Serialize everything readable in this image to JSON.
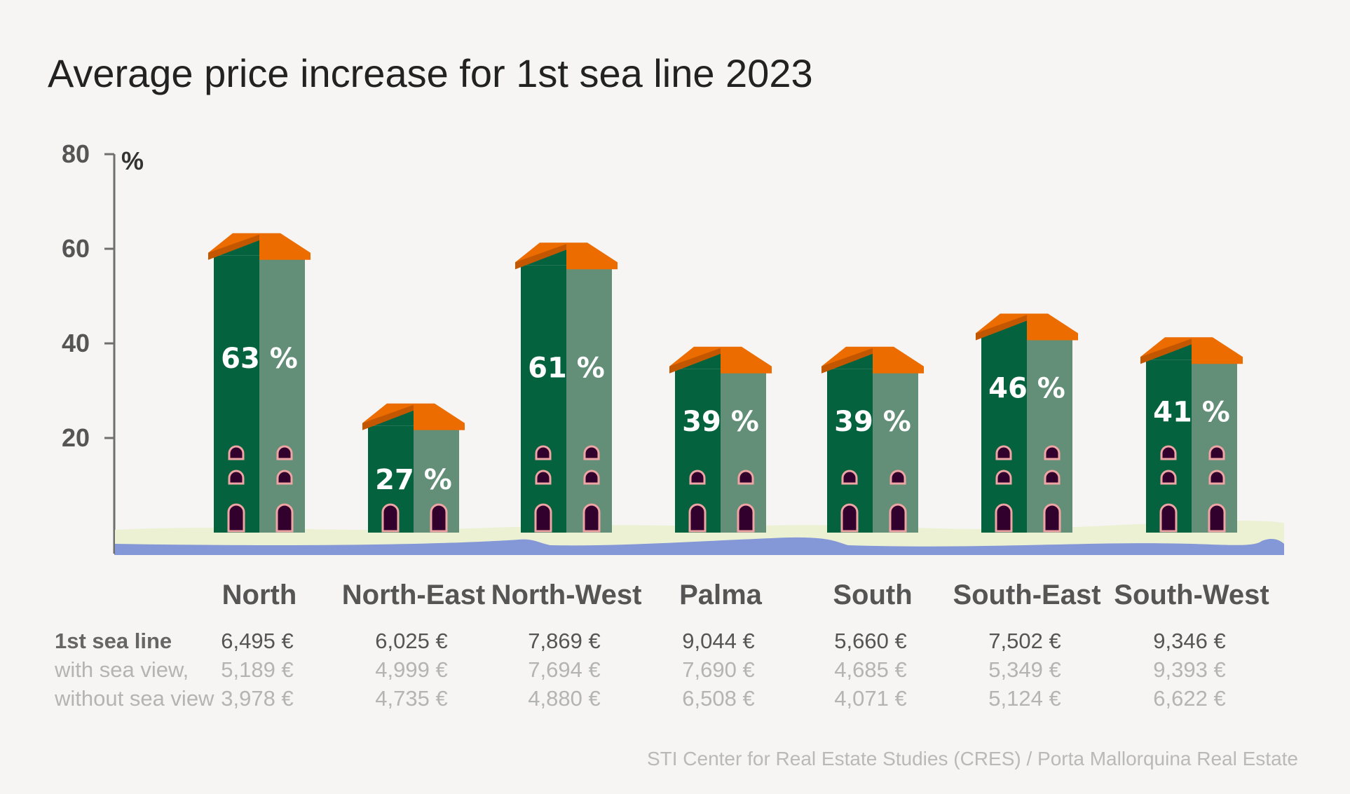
{
  "chart_data": {
    "type": "bar",
    "title": "Average price increase for 1st sea line 2023",
    "ylabel": "%",
    "ylim": [
      0,
      80
    ],
    "yticks": [
      20,
      40,
      60,
      80
    ],
    "categories": [
      "North",
      "North-East",
      "North-West",
      "Palma",
      "South",
      "South-East",
      "South-West"
    ],
    "values": [
      63,
      27,
      61,
      39,
      39,
      46,
      41
    ],
    "value_labels": [
      "63 %",
      "27 %",
      "61 %",
      "39 %",
      "39 %",
      "46 %",
      "41 %"
    ],
    "table": {
      "rows": [
        {
          "label": "1st sea line",
          "values": [
            "6,495 €",
            "6,025 €",
            "7,869 €",
            "9,044 €",
            "5,660 €",
            "7,502 €",
            "9,346 €"
          ]
        },
        {
          "label": "with sea view,",
          "values": [
            "5,189 €",
            "4,999 €",
            "7,694 €",
            "7,690 €",
            "4,685 €",
            "5,349 €",
            "9,393 €"
          ]
        },
        {
          "label": "without sea view",
          "values": [
            "3,978 €",
            "4,735 €",
            "4,880 €",
            "6,508 €",
            "4,071 €",
            "5,124 €",
            "6,622 €"
          ]
        }
      ]
    },
    "source": "STI Center for Real Estate Studies (CRES) / Porta Mallorquina Real Estate",
    "colors": {
      "facade_dark": "#04623f",
      "facade_light": "#638f79",
      "roof": "#ec6c00",
      "roof_dark": "#c35700",
      "window": "#32002c",
      "window_frame": "#f0a5a5",
      "sand": "#ecf1d4",
      "water": "#8497d6"
    }
  }
}
